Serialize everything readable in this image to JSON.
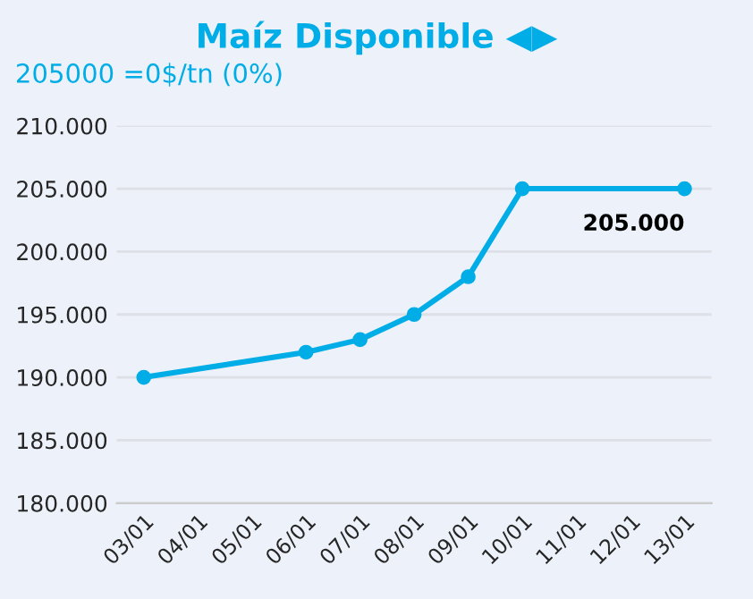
{
  "chart_data": {
    "type": "line",
    "title": "Maíz Disponible ◀▶",
    "subtitle": "205000 =0$/tn (0%)",
    "categories": [
      "03/01",
      "04/01",
      "05/01",
      "06/01",
      "07/01",
      "08/01",
      "09/01",
      "10/01",
      "11/01",
      "12/01",
      "13/01"
    ],
    "series": [
      {
        "color": "#00ade6",
        "values": [
          190000,
          null,
          null,
          192000,
          193000,
          195000,
          198000,
          205000,
          null,
          null,
          205000
        ],
        "value_labels": [
          null,
          null,
          null,
          null,
          null,
          null,
          null,
          null,
          null,
          null,
          "205.000"
        ]
      }
    ],
    "ylim": [
      180000,
      210000
    ],
    "yticks": [
      {
        "value": 180000,
        "label": "180.000"
      },
      {
        "value": 185000,
        "label": "185.000"
      },
      {
        "value": 190000,
        "label": "190.000"
      },
      {
        "value": 195000,
        "label": "195.000"
      },
      {
        "value": 200000,
        "label": "200.000"
      },
      {
        "value": 205000,
        "label": "205.000"
      },
      {
        "value": 210000,
        "label": "210.000"
      }
    ],
    "grid": "y",
    "marker": "circle",
    "line_style": "solid",
    "legend": false
  }
}
